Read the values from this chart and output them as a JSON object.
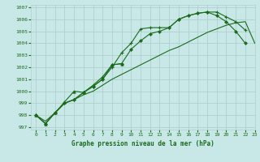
{
  "title": "Graphe pression niveau de la mer (hPa)",
  "bg_color": "#c8e8e8",
  "grid_color": "#b0d0d0",
  "line_color": "#1a6b1a",
  "xlim": [
    -0.5,
    23
  ],
  "ylim": [
    996.8,
    1007.2
  ],
  "yticks": [
    997,
    998,
    999,
    1000,
    1001,
    1002,
    1003,
    1004,
    1005,
    1006,
    1007
  ],
  "xticks": [
    0,
    1,
    2,
    3,
    4,
    5,
    6,
    7,
    8,
    9,
    10,
    11,
    12,
    13,
    14,
    15,
    16,
    17,
    18,
    19,
    20,
    21,
    22,
    23
  ],
  "s1_x": [
    0,
    1,
    2,
    3,
    4,
    5,
    6,
    7,
    8,
    9,
    10,
    11,
    12,
    13,
    14,
    15,
    16,
    17,
    18,
    19,
    20,
    21,
    22
  ],
  "s1_y": [
    998.0,
    997.3,
    998.2,
    999.0,
    999.3,
    999.9,
    1000.4,
    1001.0,
    1002.0,
    1003.2,
    1004.0,
    1005.2,
    1005.3,
    1005.3,
    1005.3,
    1006.0,
    1006.3,
    1006.5,
    1006.6,
    1006.6,
    1006.2,
    1005.8,
    1005.1
  ],
  "s2_x": [
    0,
    1,
    2,
    3,
    4,
    5,
    6,
    7,
    8,
    9,
    10,
    11,
    12,
    13,
    14,
    15,
    16,
    17,
    18,
    19,
    20,
    21,
    22
  ],
  "s2_y": [
    998.0,
    997.3,
    998.2,
    999.0,
    999.3,
    999.9,
    1000.4,
    1001.0,
    1002.2,
    1002.3,
    1003.5,
    1004.2,
    1004.8,
    1005.0,
    1005.3,
    1006.0,
    1006.3,
    1006.5,
    1006.6,
    1006.3,
    1005.8,
    1005.0,
    1004.0
  ],
  "s3_x": [
    0,
    1,
    2,
    3,
    4,
    5,
    6,
    7,
    8,
    9
  ],
  "s3_y": [
    998.0,
    997.3,
    998.2,
    999.1,
    1000.0,
    999.9,
    1000.5,
    1001.2,
    1002.2,
    1002.3
  ],
  "s4_x": [
    0,
    1,
    2,
    3,
    4,
    5,
    6,
    7,
    8,
    9,
    10,
    11,
    12,
    13,
    14,
    15,
    16,
    17,
    18,
    19,
    20,
    21,
    22,
    23
  ],
  "s4_y": [
    998.0,
    997.5,
    998.2,
    999.0,
    999.3,
    999.7,
    1000.0,
    1000.5,
    1001.0,
    1001.4,
    1001.8,
    1002.2,
    1002.6,
    1003.0,
    1003.4,
    1003.7,
    1004.1,
    1004.5,
    1004.9,
    1005.2,
    1005.5,
    1005.7,
    1005.8,
    1004.0
  ]
}
